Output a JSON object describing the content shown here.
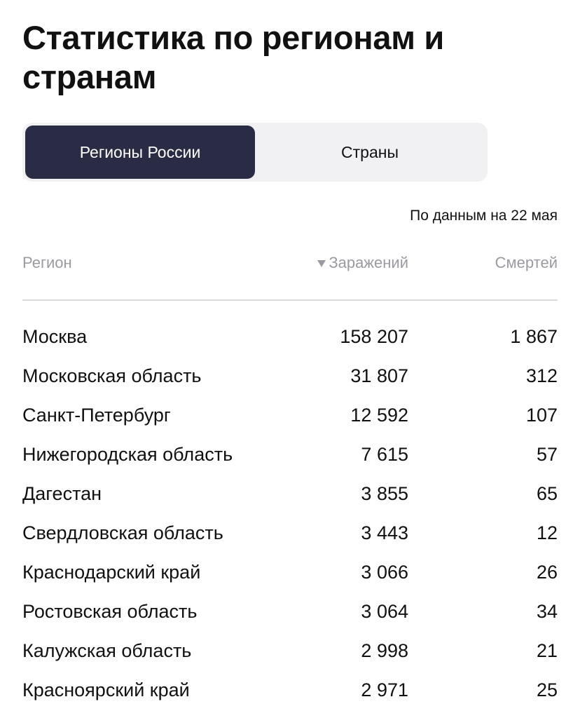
{
  "page": {
    "title_line1": "Статистика по регионам и",
    "title_line2": "странам"
  },
  "tabs": {
    "regions_label": "Регионы России",
    "countries_label": "Страны",
    "active": "regions"
  },
  "as_of": "По данным на 22 мая",
  "table": {
    "columns": {
      "region": "Регион",
      "infections": "Заражений",
      "deaths": "Смертей"
    },
    "sort": {
      "column": "infections",
      "direction": "desc",
      "icon": "sort-down-icon"
    },
    "rows": [
      {
        "region": "Москва",
        "infections": "158 207",
        "deaths": "1 867"
      },
      {
        "region": "Московская область",
        "infections": "31 807",
        "deaths": "312"
      },
      {
        "region": "Санкт-Петербург",
        "infections": "12 592",
        "deaths": "107"
      },
      {
        "region": "Нижегородская область",
        "infections": "7 615",
        "deaths": "57"
      },
      {
        "region": "Дагестан",
        "infections": "3 855",
        "deaths": "65"
      },
      {
        "region": "Свердловская область",
        "infections": "3 443",
        "deaths": "12"
      },
      {
        "region": "Краснодарский край",
        "infections": "3 066",
        "deaths": "26"
      },
      {
        "region": "Ростовская область",
        "infections": "3 064",
        "deaths": "34"
      },
      {
        "region": "Калужская область",
        "infections": "2 998",
        "deaths": "21"
      },
      {
        "region": "Красноярский край",
        "infections": "2 971",
        "deaths": "25"
      }
    ]
  },
  "colors": {
    "active_tab_bg": "#2a2b45",
    "switcher_bg": "#f1f1f3",
    "header_text": "#9a9aa3",
    "divider": "#d9d9de"
  }
}
